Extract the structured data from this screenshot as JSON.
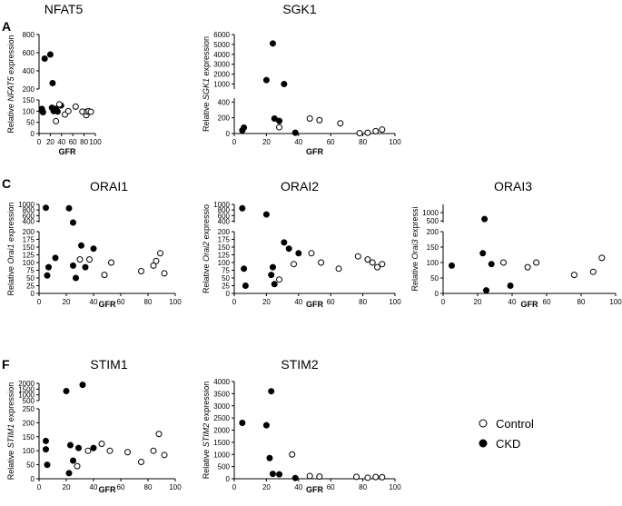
{
  "figure": {
    "panel_labels": {
      "A": "A",
      "C": "C",
      "F": "F"
    },
    "legend": {
      "control": "Control",
      "ckd": "CKD"
    },
    "colors": {
      "ckd": "#000000",
      "control": "#ffffff",
      "stroke": "#000000"
    }
  },
  "chart_data": [
    {
      "id": "nfat5",
      "type": "scatter",
      "title": "NFAT5",
      "xlabel": "GFR",
      "ylabel_pre": "Relative ",
      "ylabel_gene": "NFAT5",
      "ylabel_post": " expression",
      "xlim": [
        0,
        100
      ],
      "xticks": [
        "0",
        "20",
        "40",
        "60",
        "80",
        "100"
      ],
      "lower": {
        "range": [
          0,
          150
        ],
        "ticks": [
          "0",
          "50",
          "100",
          "150"
        ]
      },
      "upper": {
        "range": [
          200,
          800
        ],
        "ticks": [
          "200",
          "400",
          "600",
          "800"
        ]
      },
      "series": [
        {
          "name": "CKD",
          "points": [
            [
              5,
              110
            ],
            [
              6,
              100
            ],
            [
              7,
              95
            ],
            [
              10,
              535
            ],
            [
              20,
              580
            ],
            [
              23,
              115
            ],
            [
              24,
              265
            ],
            [
              26,
              100
            ],
            [
              30,
              110
            ],
            [
              33,
              98
            ],
            [
              39,
              125
            ]
          ]
        },
        {
          "name": "Control",
          "points": [
            [
              30,
              55
            ],
            [
              36,
              130
            ],
            [
              46,
              85
            ],
            [
              52,
              100
            ],
            [
              65,
              120
            ],
            [
              77,
              98
            ],
            [
              84,
              82
            ],
            [
              85,
              98
            ],
            [
              88,
              100
            ],
            [
              92,
              97
            ]
          ]
        }
      ]
    },
    {
      "id": "sgk1",
      "type": "scatter",
      "title": "SGK1",
      "xlabel": "GFR",
      "ylabel_pre": "Relative ",
      "ylabel_gene": "SGK1",
      "ylabel_post": " expression",
      "xlim": [
        0,
        100
      ],
      "xticks": [
        "0",
        "20",
        "40",
        "60",
        "80",
        "100"
      ],
      "lower": {
        "range": [
          0,
          450
        ],
        "ticks": [
          "0",
          "200",
          "400"
        ]
      },
      "upper": {
        "range": [
          500,
          6000
        ],
        "ticks": [
          "1000",
          "2000",
          "3000",
          "4000",
          "5000",
          "6000"
        ]
      },
      "series": [
        {
          "name": "CKD",
          "points": [
            [
              5,
              40
            ],
            [
              6,
              75
            ],
            [
              20,
              1400
            ],
            [
              24,
              5100
            ],
            [
              25,
              190
            ],
            [
              28,
              160
            ],
            [
              31,
              1000
            ],
            [
              38,
              10
            ]
          ]
        },
        {
          "name": "Control",
          "points": [
            [
              28,
              80
            ],
            [
              47,
              190
            ],
            [
              53,
              170
            ],
            [
              66,
              130
            ],
            [
              78,
              5
            ],
            [
              83,
              10
            ],
            [
              88,
              30
            ],
            [
              92,
              50
            ]
          ]
        }
      ]
    },
    {
      "id": "orai1",
      "type": "scatter",
      "title": "ORAI1",
      "xlabel": "GFR",
      "ylabel_pre": "Relative ",
      "ylabel_gene": "Orai1",
      "ylabel_post": " expression",
      "xlim": [
        0,
        100
      ],
      "xticks": [
        "0",
        "20",
        "40",
        "60",
        "80",
        "100"
      ],
      "lower": {
        "range": [
          0,
          200
        ],
        "ticks": [
          "0",
          "25",
          "50",
          "75",
          "100",
          "125",
          "150",
          "175",
          "200"
        ]
      },
      "upper": {
        "range": [
          350,
          1000
        ],
        "ticks": [
          "400",
          "600",
          "800",
          "1000"
        ]
      },
      "series": [
        {
          "name": "CKD",
          "points": [
            [
              5,
              880
            ],
            [
              6,
              58
            ],
            [
              7,
              85
            ],
            [
              12,
              115
            ],
            [
              22,
              860
            ],
            [
              25,
              350
            ],
            [
              25,
              90
            ],
            [
              27,
              50
            ],
            [
              31,
              155
            ],
            [
              34,
              85
            ],
            [
              40,
              145
            ]
          ]
        },
        {
          "name": "Control",
          "points": [
            [
              30,
              110
            ],
            [
              37,
              110
            ],
            [
              48,
              60
            ],
            [
              53,
              100
            ],
            [
              75,
              72
            ],
            [
              84,
              90
            ],
            [
              86,
              105
            ],
            [
              89,
              130
            ],
            [
              92,
              65
            ]
          ]
        }
      ]
    },
    {
      "id": "orai2",
      "type": "scatter",
      "title": "ORAI2",
      "xlabel": "GFR",
      "ylabel_pre": "Relative ",
      "ylabel_gene": "Orai2",
      "ylabel_post": " expressio",
      "xlim": [
        0,
        100
      ],
      "xticks": [
        "0",
        "20",
        "40",
        "60",
        "80",
        "100"
      ],
      "lower": {
        "range": [
          0,
          200
        ],
        "ticks": [
          "0",
          "25",
          "50",
          "75",
          "100",
          "125",
          "150",
          "175",
          "200"
        ]
      },
      "upper": {
        "range": [
          350,
          1000
        ],
        "ticks": [
          "400",
          "600",
          "800",
          "1000"
        ]
      },
      "series": [
        {
          "name": "CKD",
          "points": [
            [
              5,
              860
            ],
            [
              6,
              80
            ],
            [
              7,
              25
            ],
            [
              20,
              640
            ],
            [
              23,
              60
            ],
            [
              24,
              85
            ],
            [
              25,
              30
            ],
            [
              31,
              165
            ],
            [
              34,
              145
            ],
            [
              40,
              130
            ]
          ]
        },
        {
          "name": "Control",
          "points": [
            [
              28,
              45
            ],
            [
              37,
              95
            ],
            [
              48,
              130
            ],
            [
              54,
              100
            ],
            [
              65,
              80
            ],
            [
              77,
              120
            ],
            [
              83,
              110
            ],
            [
              86,
              100
            ],
            [
              89,
              85
            ],
            [
              92,
              95
            ]
          ]
        }
      ]
    },
    {
      "id": "orai3",
      "type": "scatter",
      "title": "ORAI3",
      "xlabel": "GFR",
      "ylabel_pre": "Relative ",
      "ylabel_gene": "Orai3",
      "ylabel_post": " expressi",
      "xlim": [
        0,
        100
      ],
      "xticks": [
        "0",
        "20",
        "40",
        "60",
        "80",
        "100"
      ],
      "lower": {
        "range": [
          0,
          200
        ],
        "ticks": [
          "0",
          "50",
          "100",
          "150",
          "200"
        ]
      },
      "upper": {
        "range": [
          400,
          1500
        ],
        "ticks": [
          "500",
          "1000"
        ]
      },
      "series": [
        {
          "name": "CKD",
          "points": [
            [
              5,
              90
            ],
            [
              23,
              130
            ],
            [
              24,
              610
            ],
            [
              25,
              10
            ],
            [
              28,
              95
            ],
            [
              39,
              25
            ]
          ]
        },
        {
          "name": "Control",
          "points": [
            [
              35,
              100
            ],
            [
              49,
              85
            ],
            [
              54,
              100
            ],
            [
              76,
              60
            ],
            [
              87,
              70
            ],
            [
              92,
              115
            ]
          ]
        }
      ]
    },
    {
      "id": "stim1",
      "type": "scatter",
      "title": "STIM1",
      "xlabel": "GFR",
      "ylabel_pre": "Relative ",
      "ylabel_gene": "STIM1",
      "ylabel_post": " expression",
      "xlim": [
        0,
        100
      ],
      "xticks": [
        "0",
        "20",
        "40",
        "60",
        "80",
        "100"
      ],
      "lower": {
        "range": [
          0,
          250
        ],
        "ticks": [
          "0",
          "50",
          "100",
          "150",
          "200",
          "250"
        ]
      },
      "upper": {
        "range": [
          500,
          2000
        ],
        "ticks": [
          "500",
          "1000",
          "1500",
          "2000"
        ]
      },
      "series": [
        {
          "name": "CKD",
          "points": [
            [
              5,
              135
            ],
            [
              5,
              105
            ],
            [
              6,
              50
            ],
            [
              20,
              1330
            ],
            [
              22,
              20
            ],
            [
              23,
              120
            ],
            [
              25,
              65
            ],
            [
              29,
              110
            ],
            [
              32,
              1870
            ],
            [
              40,
              110
            ]
          ]
        },
        {
          "name": "Control",
          "points": [
            [
              28,
              45
            ],
            [
              36,
              100
            ],
            [
              46,
              125
            ],
            [
              52,
              100
            ],
            [
              65,
              95
            ],
            [
              75,
              60
            ],
            [
              84,
              100
            ],
            [
              88,
              160
            ],
            [
              92,
              85
            ]
          ]
        }
      ]
    },
    {
      "id": "stim2",
      "type": "scatter",
      "title": "STIM2",
      "xlabel": "GFR",
      "ylabel_pre": "Relative ",
      "ylabel_gene": "STIM2",
      "ylabel_post": " expression",
      "xlim": [
        0,
        100
      ],
      "xticks": [
        "0",
        "20",
        "40",
        "60",
        "80",
        "100"
      ],
      "lower": {
        "range": [
          0,
          4000
        ],
        "ticks": [
          "0",
          "500",
          "1000",
          "1500",
          "2000",
          "2500",
          "3000",
          "3500",
          "4000"
        ]
      },
      "upper": null,
      "series": [
        {
          "name": "CKD",
          "points": [
            [
              5,
              2300
            ],
            [
              20,
              2200
            ],
            [
              22,
              850
            ],
            [
              23,
              3600
            ],
            [
              24,
              200
            ],
            [
              28,
              180
            ],
            [
              38,
              30
            ]
          ]
        },
        {
          "name": "Control",
          "points": [
            [
              36,
              1000
            ],
            [
              47,
              110
            ],
            [
              53,
              90
            ],
            [
              76,
              80
            ],
            [
              83,
              40
            ],
            [
              88,
              70
            ],
            [
              92,
              60
            ]
          ]
        }
      ]
    }
  ]
}
